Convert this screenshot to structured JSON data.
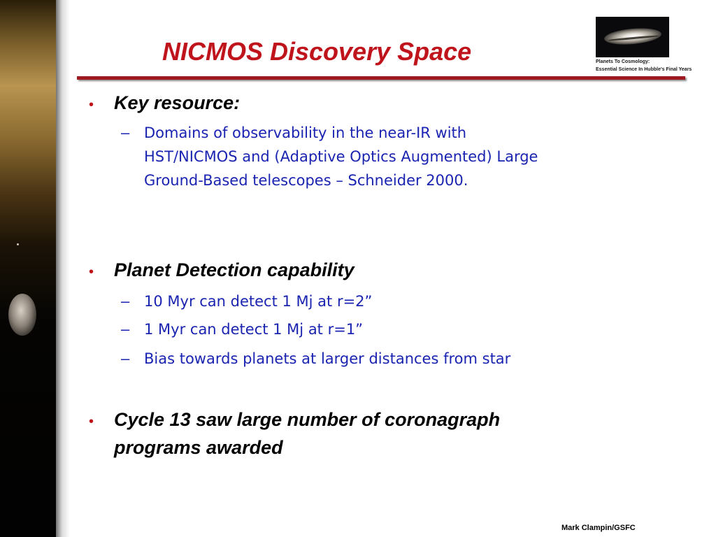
{
  "title": "NICMOS Discovery Space",
  "logo": {
    "line1": "Planets To Cosmology:",
    "line2": "Essential Science In Hubble's Final Years"
  },
  "sections": [
    {
      "heading": "Key resource:",
      "items": [
        "Domains of observability in the near-IR with",
        "HST/NICMOS and (Adaptive Optics Augmented) Large",
        "Ground-Based telescopes – Schneider 2000."
      ]
    },
    {
      "heading": "Planet Detection capability",
      "items": [
        "10 Myr  can detect 1 Mj at r=2”",
        "1 Myr can detect 1 Mj at r=1”",
        "Bias towards planets at larger distances from star"
      ]
    },
    {
      "heading_line1": "Cycle 13 saw large number of coronagraph",
      "heading_line2": "programs awarded"
    }
  ],
  "footer": "Mark Clampin/GSFC"
}
